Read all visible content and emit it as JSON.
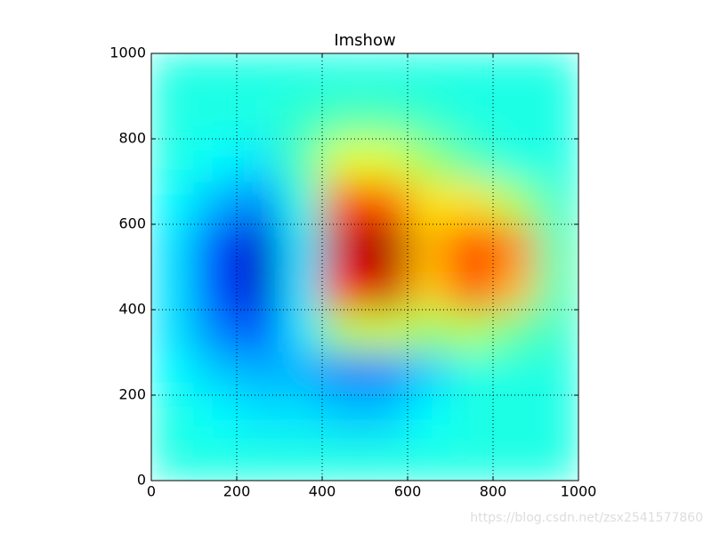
{
  "chart_data": {
    "type": "heatmap",
    "title": "Imshow",
    "colormap": "jet",
    "x": [
      50,
      150,
      250,
      350,
      450,
      550,
      650,
      750,
      850,
      950
    ],
    "y": [
      950,
      850,
      750,
      650,
      550,
      450,
      350,
      250,
      150,
      50
    ],
    "z": [
      [
        -0.2,
        -0.2,
        -0.2,
        -0.2,
        -0.2,
        -0.2,
        -0.2,
        -0.2,
        -0.2,
        -0.2
      ],
      [
        -0.2,
        -0.2,
        -0.2,
        -0.15,
        -0.1,
        -0.1,
        -0.15,
        -0.2,
        -0.2,
        -0.2
      ],
      [
        -0.2,
        -0.25,
        -0.3,
        -0.1,
        0.2,
        0.2,
        0.05,
        -0.1,
        -0.2,
        -0.2
      ],
      [
        -0.25,
        -0.4,
        -0.5,
        -0.2,
        0.6,
        0.6,
        0.3,
        0.3,
        0.1,
        -0.15
      ],
      [
        -0.3,
        -0.6,
        -0.85,
        -0.3,
        0.85,
        0.95,
        0.4,
        0.65,
        0.5,
        -0.1
      ],
      [
        -0.3,
        -0.6,
        -0.85,
        -0.3,
        0.75,
        0.85,
        0.35,
        0.6,
        0.4,
        -0.1
      ],
      [
        -0.3,
        -0.5,
        -0.6,
        -0.3,
        0.1,
        0.15,
        0.05,
        0.1,
        -0.05,
        -0.15
      ],
      [
        -0.25,
        -0.35,
        -0.4,
        -0.4,
        -0.5,
        -0.5,
        -0.35,
        -0.2,
        -0.2,
        -0.2
      ],
      [
        -0.2,
        -0.25,
        -0.3,
        -0.3,
        -0.35,
        -0.35,
        -0.25,
        -0.2,
        -0.2,
        -0.2
      ],
      [
        -0.2,
        -0.2,
        -0.2,
        -0.2,
        -0.2,
        -0.2,
        -0.2,
        -0.2,
        -0.2,
        -0.2
      ]
    ],
    "vlim": [
      -1,
      1
    ],
    "xlim": [
      0,
      1000
    ],
    "ylim": [
      0,
      1000
    ],
    "xticks": [
      0,
      200,
      400,
      600,
      800,
      1000
    ],
    "yticks": [
      0,
      200,
      400,
      600,
      800,
      1000
    ],
    "grid": true
  },
  "watermark": "https://blog.csdn.net/zsx2541577860"
}
